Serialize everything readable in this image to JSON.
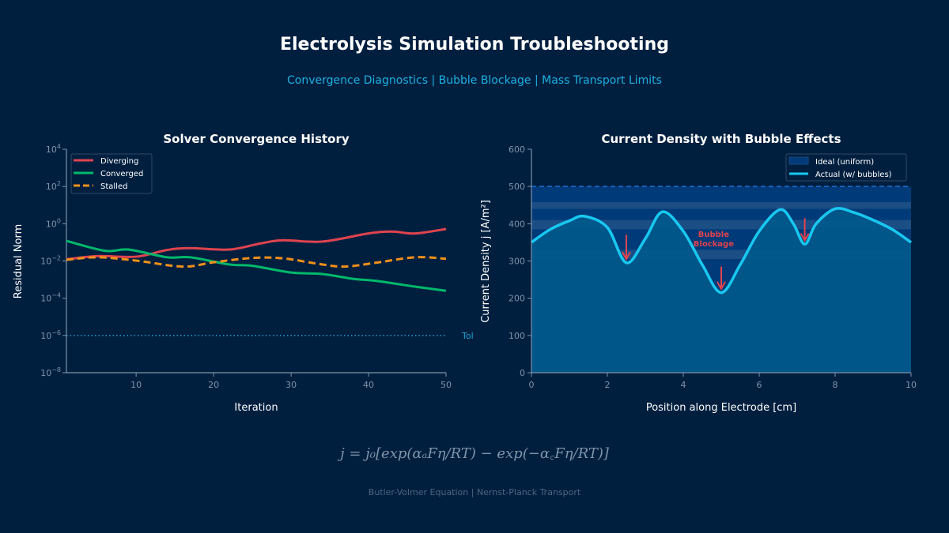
{
  "header": {
    "title": "Electrolysis Simulation Troubleshooting",
    "subtitle": "Convergence Diagnostics  |  Bubble Blockage  |  Mass Transport Limits"
  },
  "footer": {
    "equation": "j = j₀[exp(αₐFη/RT) − exp(−α꜀Fη/RT)]",
    "caption": "Butler-Volmer Equation  |  Nernst-Planck Transport"
  },
  "colors": {
    "background": "#001f3f",
    "diverging": "#e0434f",
    "converged": "#00b86b",
    "stalled": "#f0901a",
    "tolerance": "#1fa0d0",
    "actual": "#18c8f0",
    "ideal_fill": "#003a78",
    "actual_fill": "#005a8c",
    "annotation": "#e0434f"
  },
  "chart_data": [
    {
      "type": "line",
      "title": "Solver Convergence History",
      "xlabel": "Iteration",
      "ylabel": "Residual Norm",
      "xlim": [
        1,
        50
      ],
      "ylim": [
        1e-08,
        10000.0
      ],
      "yscale": "log",
      "xticks": [
        "10",
        "20",
        "30",
        "40",
        "50"
      ],
      "yticks": [
        "10^-8",
        "10^-6",
        "10^-4",
        "10^-2",
        "10^0",
        "10^2",
        "10^4"
      ],
      "legend": "top-left",
      "grid": false,
      "series": [
        {
          "name": "Diverging",
          "style": "solid",
          "x": [
            1,
            5,
            10,
            14,
            17,
            22,
            26,
            29,
            34,
            40,
            43,
            46,
            50
          ],
          "y": [
            0.0123,
            0.0182,
            0.017,
            0.039,
            0.049,
            0.041,
            0.087,
            0.129,
            0.11,
            0.3,
            0.38,
            0.3,
            0.52
          ]
        },
        {
          "name": "Converged",
          "style": "solid",
          "x": [
            1,
            6,
            9,
            14,
            17,
            22,
            25,
            30,
            34,
            38,
            41,
            46,
            50
          ],
          "y": [
            0.12,
            0.035,
            0.041,
            0.0158,
            0.0158,
            0.0065,
            0.0055,
            0.0024,
            0.002,
            0.0011,
            0.00085,
            0.00042,
            0.00025
          ]
        },
        {
          "name": "Stalled",
          "style": "dashed",
          "x": [
            1,
            5,
            10,
            16,
            20,
            25,
            29,
            34,
            37,
            41,
            46,
            50
          ],
          "y": [
            0.0115,
            0.0158,
            0.0105,
            0.005,
            0.0085,
            0.0145,
            0.0138,
            0.0065,
            0.005,
            0.0081,
            0.0158,
            0.0132
          ]
        }
      ],
      "reference_line": {
        "label": "Tol",
        "value": 1e-06
      }
    },
    {
      "type": "area",
      "title": "Current Density with Bubble Effects",
      "xlabel": "Position along Electrode [cm]",
      "ylabel": "Current Density j [A/m²]",
      "xlim": [
        0,
        10
      ],
      "ylim": [
        0,
        600
      ],
      "xticks": [
        "0",
        "2",
        "4",
        "6",
        "8",
        "10"
      ],
      "yticks": [
        "0",
        "100",
        "200",
        "300",
        "400",
        "500",
        "600"
      ],
      "legend": "top-right",
      "grid": false,
      "ideal": {
        "name": "Ideal (uniform)",
        "value": 500
      },
      "series": [
        {
          "name": "Actual (w/ bubbles)",
          "x": [
            0,
            0.5,
            1,
            1.4,
            2,
            2.5,
            3,
            3.45,
            4,
            4.5,
            5,
            5.5,
            6,
            6.55,
            6.9,
            7.2,
            7.5,
            8,
            8.5,
            9,
            9.5,
            10
          ],
          "y": [
            350,
            385,
            408,
            420,
            390,
            295,
            360,
            432,
            380,
            290,
            215,
            290,
            380,
            438,
            400,
            345,
            400,
            440,
            430,
            410,
            385,
            350
          ]
        }
      ],
      "annotations": [
        {
          "text": "Bubble\nBlockage",
          "x": 4.8,
          "y": 350
        },
        {
          "arrow_at": 2.5,
          "from": 370,
          "to": 305
        },
        {
          "arrow_at": 5,
          "from": 285,
          "to": 225
        },
        {
          "arrow_at": 7.2,
          "from": 415,
          "to": 355
        }
      ]
    }
  ]
}
